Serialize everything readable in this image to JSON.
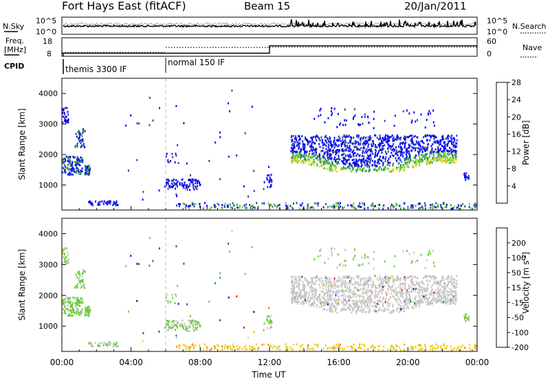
{
  "header": {
    "station": "Fort Hays East (fitACF)",
    "beam": "Beam 15",
    "date": "20/Jan/2011"
  },
  "left_labels": {
    "nsky": "N.Sky",
    "freq_line1": "Freq.",
    "freq_line2": "[MHz]",
    "cpid": "CPID"
  },
  "right_labels": {
    "nsearch": "N.Search",
    "nave": "Nave"
  },
  "cpid_labels": [
    "themis 3300 IF",
    "normal 150 IF"
  ],
  "chart_data": [
    {
      "type": "line",
      "name": "noise_panel",
      "y_left_ticks": [
        "10^5",
        "10^0"
      ],
      "y_right_ticks": [
        "10^5",
        "10^0"
      ],
      "series": [
        {
          "name": "N.Sky",
          "style": "solid"
        },
        {
          "name": "N.Search",
          "style": "dotted"
        }
      ]
    },
    {
      "type": "line",
      "name": "freq_nave_panel",
      "y_left_ticks": [
        "18",
        "8"
      ],
      "y_right_ticks": [
        "60",
        "0"
      ],
      "x": [
        0,
        6,
        12,
        24
      ],
      "series": [
        {
          "name": "Freq.",
          "style": "solid",
          "values": [
            10.5,
            10.5,
            16.5,
            16.5
          ]
        },
        {
          "name": "Nave",
          "style": "dotted",
          "values": [
            18,
            43,
            45,
            45
          ]
        }
      ]
    },
    {
      "type": "heatmap",
      "name": "power_panel",
      "ylabel": "Slant Range [km]",
      "yticks": [
        1000,
        2000,
        3000,
        4000
      ],
      "ylim": [
        180,
        4500
      ],
      "xlim": [
        0,
        24
      ],
      "colorbar": {
        "label": "Power [dB]",
        "ticks": [
          "4",
          "8",
          "12",
          "16",
          "20",
          "24",
          "28"
        ],
        "colors": [
          "#0000ff",
          "#2b3fb0",
          "#2e8b57",
          "#66cc33",
          "#f0d020",
          "#f08a10",
          "#e02010"
        ]
      }
    },
    {
      "type": "heatmap",
      "name": "velocity_panel",
      "ylabel": "Slant Range [km]",
      "yticks": [
        1000,
        2000,
        3000,
        4000
      ],
      "ylim": [
        180,
        4500
      ],
      "xlim": [
        0,
        24
      ],
      "xticks": [
        "00:00",
        "04:00",
        "08:00",
        "12:00",
        "16:00",
        "20:00",
        "00:00"
      ],
      "xlabel": "Time UT",
      "colorbar": {
        "label": "Velocity [m s^-1]",
        "ticks": [
          "200",
          "100",
          "50",
          "15",
          "-15",
          "-50",
          "-100",
          "-200"
        ],
        "colors": [
          "#1010c8",
          "#2848a0",
          "#2e8b57",
          "#66cc33",
          "#c8c8c8",
          "#f0d020",
          "#f08a10",
          "#e02010"
        ]
      }
    }
  ]
}
